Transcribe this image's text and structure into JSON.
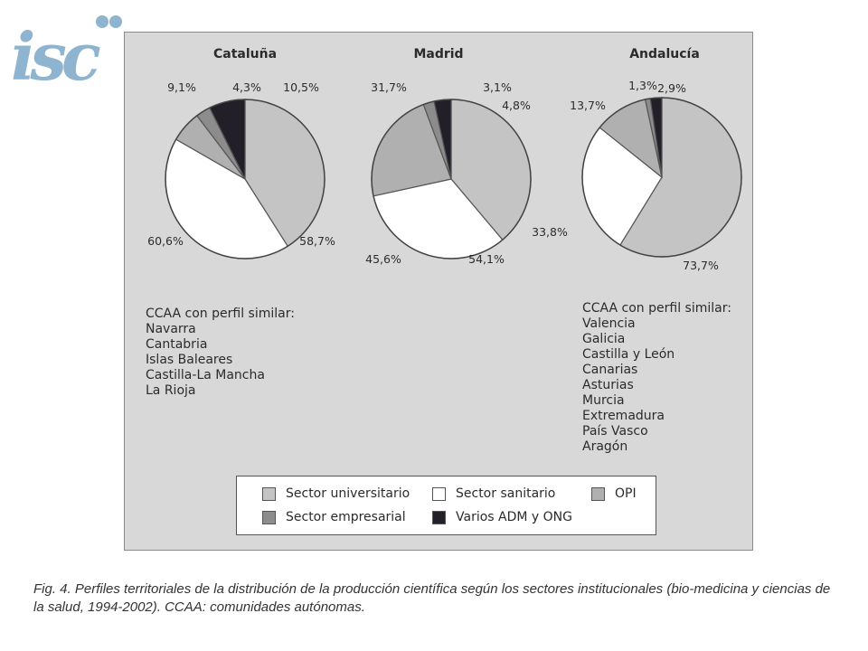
{
  "logo": {
    "text": "isc"
  },
  "chart_data": {
    "type": "pie",
    "legend": [
      {
        "name": "Sector universitario",
        "color": "#c4c4c4"
      },
      {
        "name": "Sector sanitario",
        "color": "#ffffff"
      },
      {
        "name": "OPI",
        "color": "#b0b0b0"
      },
      {
        "name": "Sector empresarial",
        "color": "#8c8c8c"
      },
      {
        "name": "Varios ADM y ONG",
        "color": "#231f28"
      }
    ],
    "pies": [
      {
        "title": "Cataluña",
        "slices": [
          {
            "name": "Sector universitario",
            "value": 58.7,
            "label": "58,7%"
          },
          {
            "name": "Sector sanitario",
            "value": 60.6,
            "label": "60,6%"
          },
          {
            "name": "OPI",
            "value": 9.1,
            "label": "9,1%"
          },
          {
            "name": "Sector empresarial",
            "value": 4.3,
            "label": "4,3%"
          },
          {
            "name": "Varios ADM y ONG",
            "value": 10.5,
            "label": "10,5%"
          }
        ]
      },
      {
        "title": "Madrid",
        "slices": [
          {
            "name": "Sector universitario",
            "value": 54.1,
            "label": "54,1%"
          },
          {
            "name": "Sector sanitario",
            "value": 45.6,
            "label": "45,6%"
          },
          {
            "name": "OPI",
            "value": 31.7,
            "label": "31,7%"
          },
          {
            "name": "Sector empresarial",
            "value": 3.1,
            "label": "3,1%"
          },
          {
            "name": "Varios ADM y ONG",
            "value": 4.8,
            "label": "4,8%"
          }
        ]
      },
      {
        "title": "Andalucía",
        "slices": [
          {
            "name": "Sector universitario",
            "value": 73.7,
            "label": "73,7%"
          },
          {
            "name": "Sector sanitario",
            "value": 33.8,
            "label": "33,8%"
          },
          {
            "name": "OPI",
            "value": 13.7,
            "label": "13,7%"
          },
          {
            "name": "Sector empresarial",
            "value": 1.3,
            "label": "1,3%"
          },
          {
            "name": "Varios ADM y ONG",
            "value": 2.9,
            "label": "2,9%"
          }
        ]
      }
    ]
  },
  "similar_left": {
    "heading": "CCAA con perfil similar:",
    "items": [
      "Navarra",
      "Cantabria",
      "Islas Baleares",
      "Castilla-La Mancha",
      "La Rioja"
    ]
  },
  "similar_right": {
    "heading": "CCAA con perfil similar:",
    "items": [
      "Valencia",
      "Galicia",
      "Castilla y León",
      "Canarias",
      "Asturias",
      "Murcia",
      "Extremadura",
      "País Vasco",
      "Aragón"
    ]
  },
  "caption": "Fig. 4. Perfiles territoriales de la distribución de la producción científica según los sectores institucionales (bio-medicina y ciencias de la salud, 1994-2002). CCAA: comunidades autónomas."
}
